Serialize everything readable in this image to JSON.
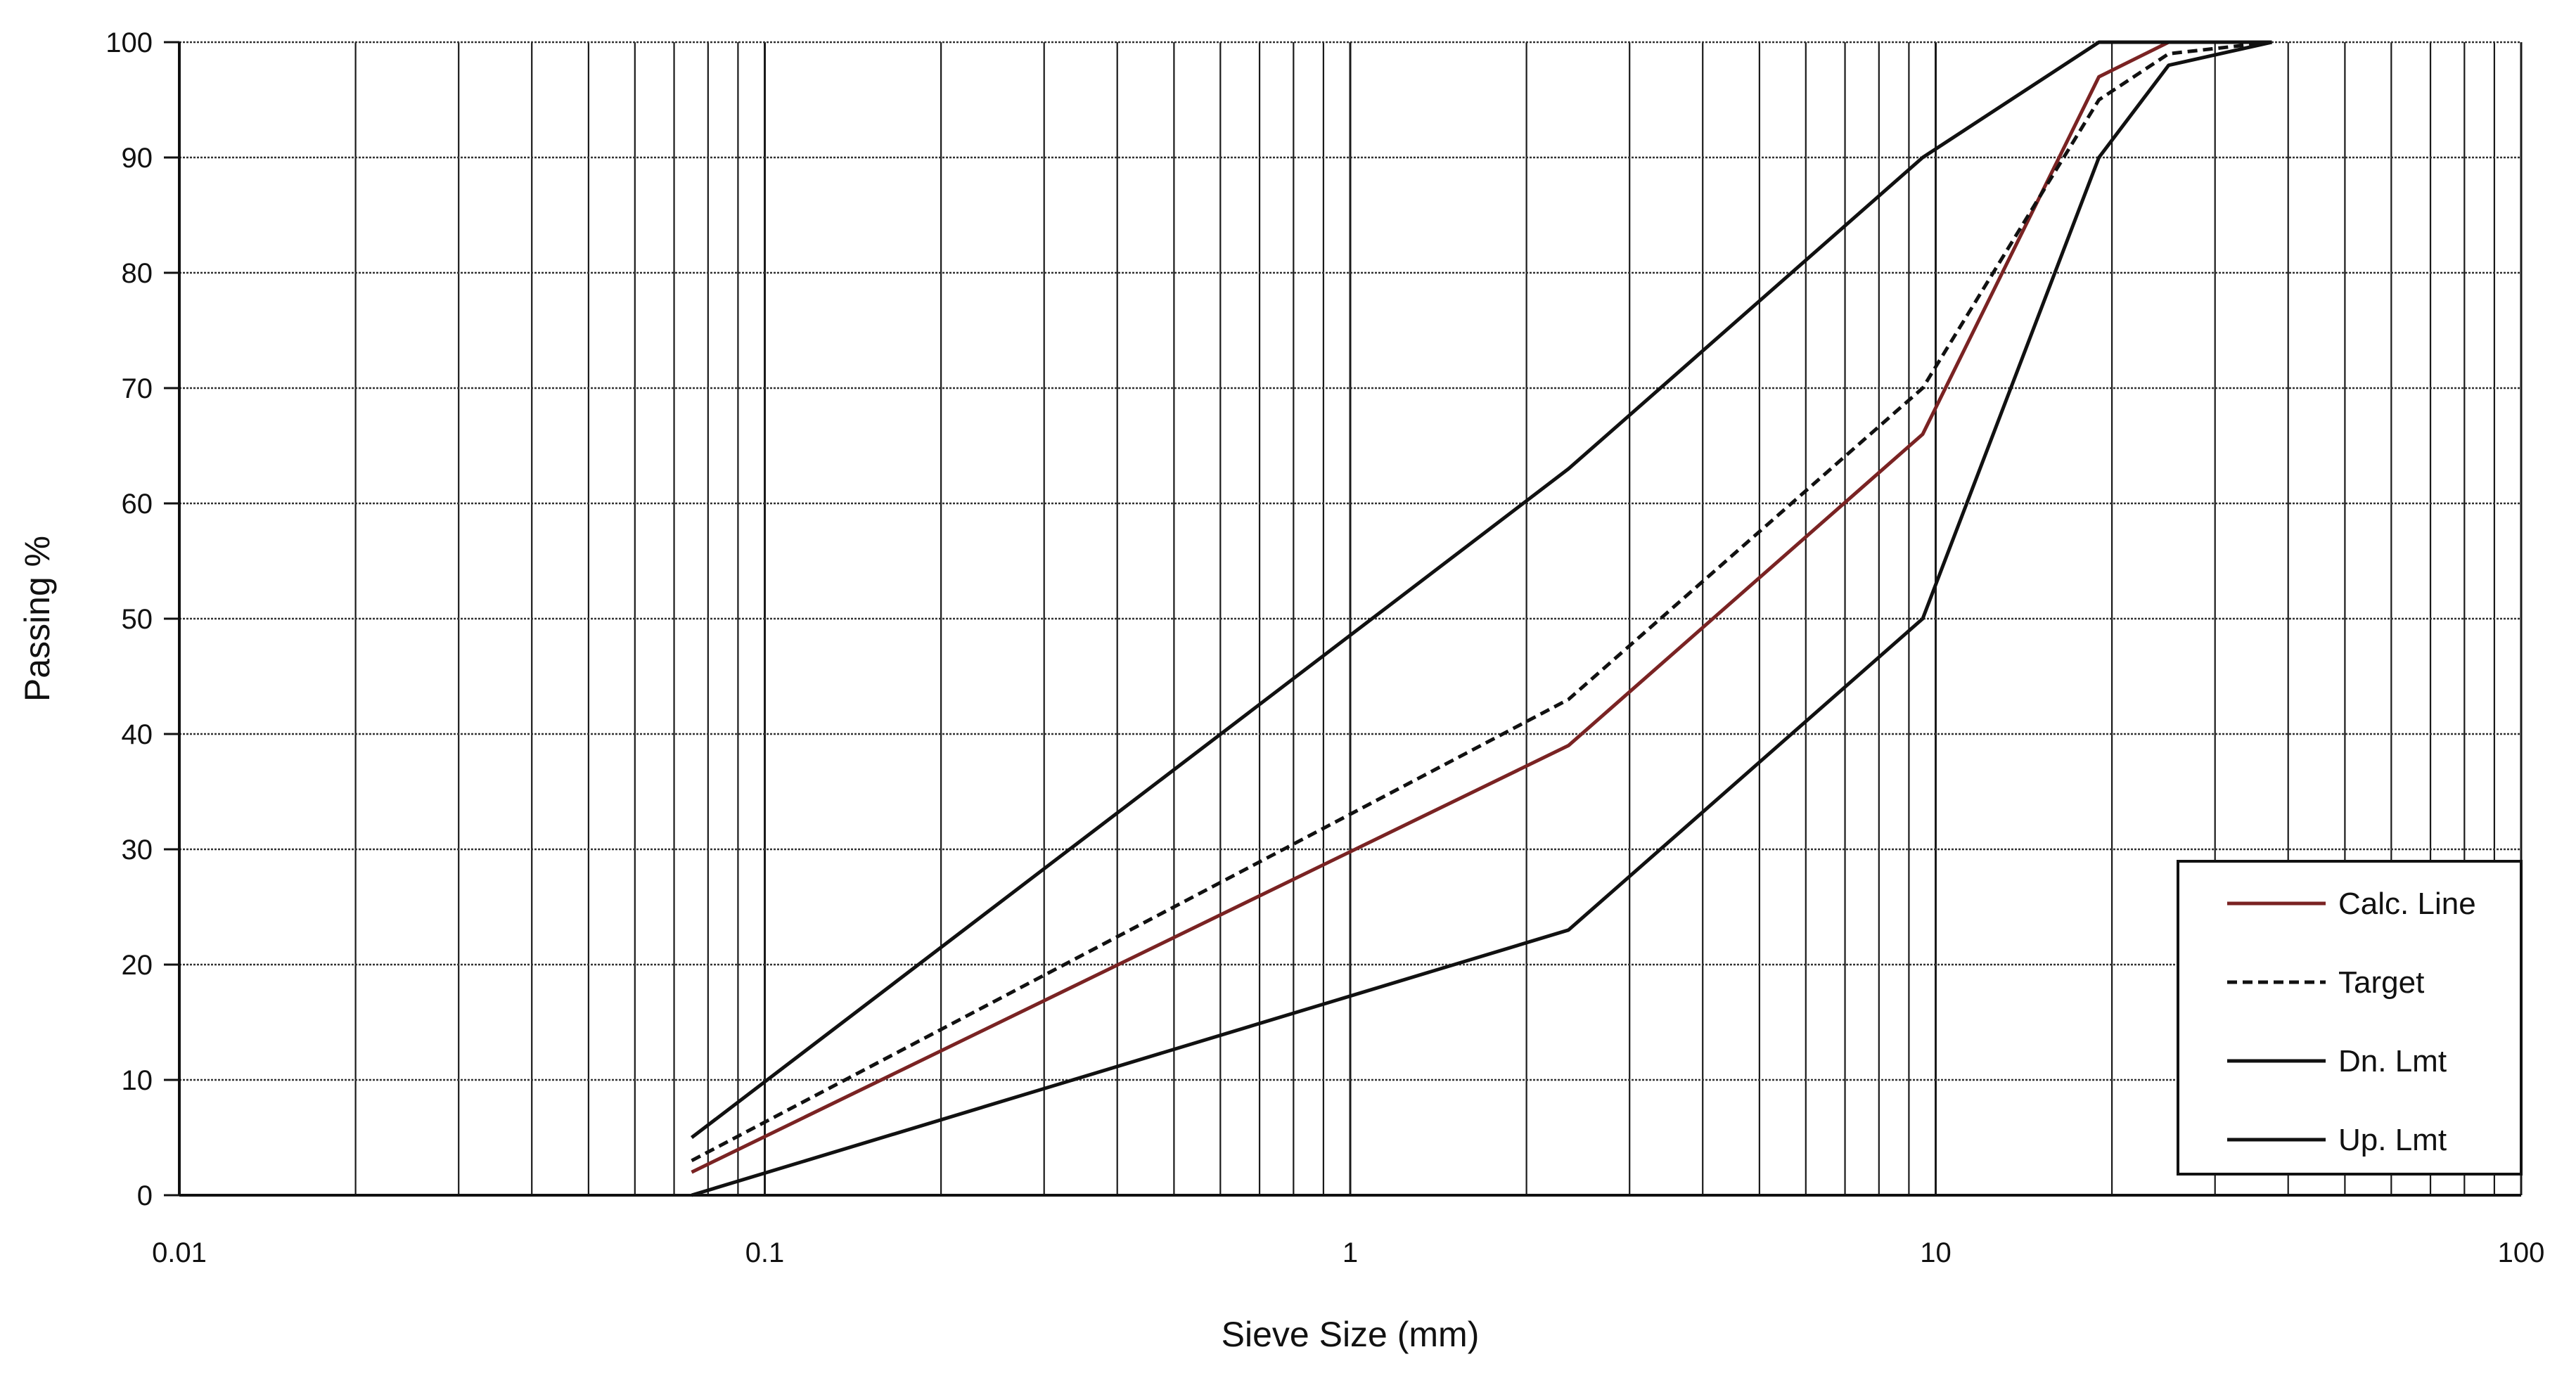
{
  "chart_data": {
    "type": "line",
    "xlabel": "Sieve Size (mm)",
    "ylabel": "Passing %",
    "xscale": "log",
    "xlim": [
      0.01,
      100
    ],
    "ylim": [
      0,
      100
    ],
    "x_tick_labels": [
      "0.01",
      "0.1",
      "1",
      "10",
      "100"
    ],
    "y_tick_labels": [
      "0",
      "10",
      "20",
      "30",
      "40",
      "50",
      "60",
      "70",
      "80",
      "90",
      "100"
    ],
    "grid": "on",
    "legend_position": "bottom-right",
    "series": [
      {
        "name": "Calc. Line",
        "color": "#7a2323",
        "style": "solid",
        "points": [
          [
            0.075,
            2
          ],
          [
            2.36,
            39
          ],
          [
            9.5,
            66
          ],
          [
            19,
            97
          ],
          [
            25,
            100
          ],
          [
            37.5,
            100
          ]
        ]
      },
      {
        "name": "Target",
        "color": "#111111",
        "style": "dashed",
        "points": [
          [
            0.075,
            3
          ],
          [
            2.36,
            43
          ],
          [
            9.5,
            70
          ],
          [
            19,
            95
          ],
          [
            25,
            99
          ],
          [
            37.5,
            100
          ]
        ]
      },
      {
        "name": "Dn. Lmt",
        "color": "#111111",
        "style": "solid",
        "points": [
          [
            0.075,
            0
          ],
          [
            2.36,
            23
          ],
          [
            9.5,
            50
          ],
          [
            19,
            90
          ],
          [
            25,
            98
          ],
          [
            37.5,
            100
          ]
        ]
      },
      {
        "name": "Up. Lmt",
        "color": "#111111",
        "style": "solid",
        "points": [
          [
            0.075,
            5
          ],
          [
            2.36,
            63
          ],
          [
            9.5,
            90
          ],
          [
            19,
            100
          ],
          [
            25,
            100
          ],
          [
            37.5,
            100
          ]
        ]
      }
    ]
  }
}
